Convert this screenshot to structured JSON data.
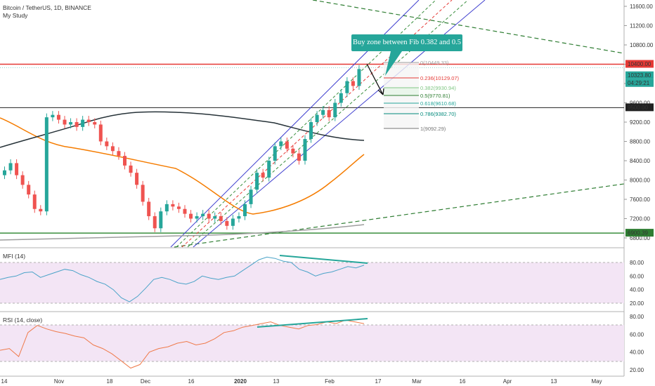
{
  "header": {
    "symbol_line": "Bitcoin / TetherUS, 1D, BINANCE",
    "study_line": "My Study"
  },
  "callout": {
    "text": "Buy zone between Fib 0.382 and 0.5"
  },
  "colors": {
    "up": "#26a69a",
    "down": "#ef5350",
    "resistance": "#e53935",
    "support": "#388e3c",
    "channel": "#3f3fcf",
    "ma_orange": "#f57c00",
    "ma_dark": "#263238",
    "ma_gray": "#9e9e9e",
    "mfi_line": "#4aa3c8",
    "rsi_line": "#ef7a4a",
    "osc_band": "#f3e5f5",
    "trend_green": "#2e7d32"
  },
  "price_axis": {
    "ticks": [
      "11600.00",
      "11200.00",
      "10800.00",
      "10400.00",
      "10000.00",
      "9600.00",
      "9200.00",
      "8800.00",
      "8400.00",
      "8000.00",
      "7600.00",
      "7200.00",
      "6800.00"
    ],
    "tags": [
      {
        "label": "10400.00",
        "color": "#e53935"
      },
      {
        "label": "10323.80",
        "color": "#26a69a"
      },
      {
        "label": "04:29:21",
        "color": "#26a69a"
      },
      {
        "label": "9500.00",
        "color": "#212121"
      },
      {
        "label": "6900.39",
        "color": "#2e7d32"
      }
    ]
  },
  "time_axis": {
    "labels": [
      "14",
      "Nov",
      "18",
      "Dec",
      "16",
      "2020",
      "13",
      "Feb",
      "17",
      "Mar",
      "16",
      "Apr",
      "13",
      "May"
    ]
  },
  "fib_levels": [
    {
      "label": "0(10449.33)",
      "color": "#9e9e9e"
    },
    {
      "label": "0.236(10129.07)",
      "color": "#e53935"
    },
    {
      "label": "0.382(9930.94)",
      "color": "#81c784"
    },
    {
      "label": "0.5(9770.81)",
      "color": "#2e7d32"
    },
    {
      "label": "0.618(9610.68)",
      "color": "#26a69a"
    },
    {
      "label": "0.786(9382.70)",
      "color": "#00897b"
    },
    {
      "label": "1(9092.29)",
      "color": "#757575"
    }
  ],
  "mfi": {
    "title": "MFI (14)",
    "ticks": [
      "80.00",
      "60.00",
      "40.00",
      "20.00"
    ]
  },
  "rsi": {
    "title": "RSI (14, close)",
    "ticks": [
      "80.00",
      "60.00",
      "40.00",
      "20.00"
    ]
  },
  "chart_data": {
    "type": "line",
    "title": "Bitcoin / TetherUS, 1D, BINANCE",
    "series": [
      {
        "name": "Bitcoin / TetherUS",
        "values": [
          8200,
          8350,
          8100,
          7900,
          7700,
          7400,
          7350,
          9300,
          9350,
          9250,
          9150,
          9200,
          9100,
          9250,
          9200,
          9150,
          8800,
          8700,
          8600,
          8500,
          8300,
          8150,
          7900,
          7550,
          7250,
          7000,
          7350,
          7500,
          7450,
          7400,
          7300,
          7200,
          7250,
          7300,
          7200,
          7250,
          7150,
          7050,
          7200,
          7250,
          7500,
          7800,
          8150,
          8050,
          8400,
          8700,
          8800,
          8650,
          8550,
          8400,
          8850,
          9200,
          9350,
          9450,
          9300,
          9600,
          9800,
          10050,
          9950,
          10300
        ]
      },
      {
        "name": "MFI (14)",
        "values": [
          55,
          58,
          60,
          65,
          66,
          58,
          62,
          66,
          70,
          68,
          62,
          58,
          52,
          48,
          40,
          28,
          22,
          30,
          42,
          55,
          58,
          55,
          50,
          48,
          52,
          60,
          57,
          55,
          58,
          60,
          68,
          76,
          84,
          88,
          86,
          82,
          80,
          70,
          66,
          60,
          64,
          66,
          70,
          74,
          72,
          76
        ]
      },
      {
        "name": "RSI (14, close)",
        "values": [
          42,
          44,
          35,
          62,
          70,
          66,
          63,
          61,
          58,
          56,
          48,
          44,
          38,
          30,
          22,
          26,
          40,
          44,
          46,
          50,
          52,
          48,
          50,
          55,
          62,
          64,
          68,
          70,
          72,
          74,
          70,
          68,
          66,
          70,
          71,
          74,
          72,
          76,
          74,
          72
        ]
      }
    ],
    "ylim": [
      6600,
      11800
    ],
    "horizontal_levels": [
      10400.0,
      9500.0,
      6900.39
    ],
    "oscillator_ylim": [
      0,
      100
    ],
    "oscillator_bands": [
      30,
      70
    ]
  }
}
